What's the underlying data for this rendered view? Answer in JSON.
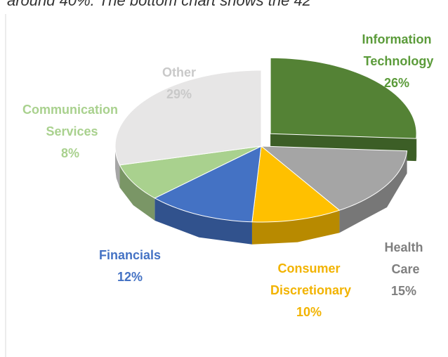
{
  "caption": "around 40%. The bottom chart shows the 42",
  "chart_data": {
    "type": "pie3d",
    "categories": [
      "Information Technology",
      "Health Care",
      "Consumer Discretionary",
      "Financials",
      "Communication Services",
      "Other"
    ],
    "values": [
      26,
      15,
      10,
      12,
      8,
      29
    ],
    "value_labels": [
      "26%",
      "15%",
      "10%",
      "12%",
      "8%",
      "29%"
    ],
    "colors": [
      "#548235",
      "#a5a5a5",
      "#ffc000",
      "#4472c4",
      "#a9d18e",
      "#e7e6e6"
    ],
    "label_colors": [
      "#5b9b3a",
      "#7f7f7f",
      "#f2b300",
      "#4472c4",
      "#a9d18e",
      "#c9c9c9"
    ],
    "exploded": [
      0
    ]
  }
}
